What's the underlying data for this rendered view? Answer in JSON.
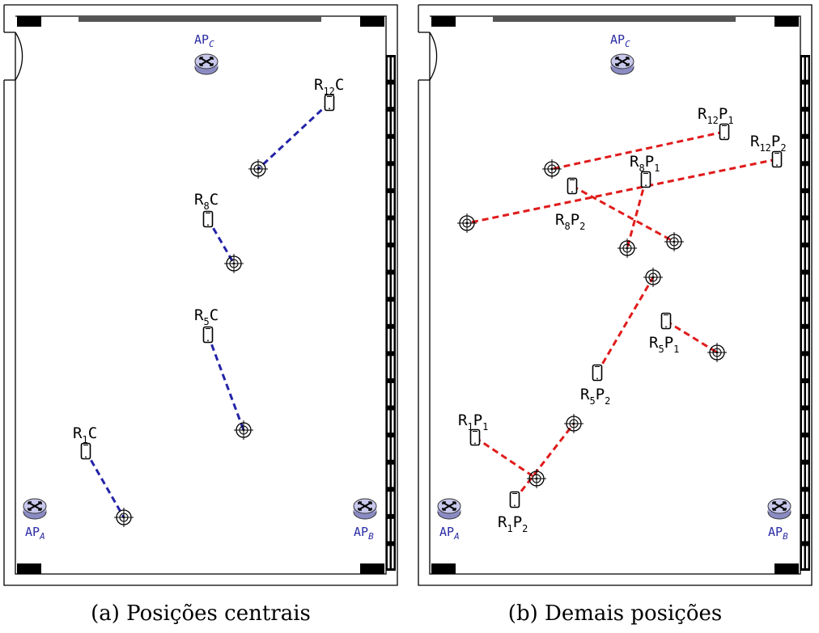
{
  "panels": [
    {
      "caption": "(a) Posições centrais",
      "line_color": "#2323a8",
      "access_points": [
        {
          "name": "AP",
          "sub": "C"
        },
        {
          "name": "AP",
          "sub": "A"
        },
        {
          "name": "AP",
          "sub": "B"
        }
      ],
      "readings": [
        {
          "label": "R",
          "sub": "12",
          "suffix": "C"
        },
        {
          "label": "R",
          "sub": "8",
          "suffix": "C"
        },
        {
          "label": "R",
          "sub": "5",
          "suffix": "C"
        },
        {
          "label": "R",
          "sub": "1",
          "suffix": "C"
        }
      ]
    },
    {
      "caption": "(b) Demais posições",
      "line_color": "#e01b1b",
      "access_points": [
        {
          "name": "AP",
          "sub": "C"
        },
        {
          "name": "AP",
          "sub": "A"
        },
        {
          "name": "AP",
          "sub": "B"
        }
      ],
      "readings": [
        {
          "label": "R",
          "sub": "12",
          "suffix": "P",
          "idx": "1"
        },
        {
          "label": "R",
          "sub": "12",
          "suffix": "P",
          "idx": "2"
        },
        {
          "label": "R",
          "sub": "8",
          "suffix": "P",
          "idx": "1"
        },
        {
          "label": "R",
          "sub": "8",
          "suffix": "P",
          "idx": "2"
        },
        {
          "label": "R",
          "sub": "5",
          "suffix": "P",
          "idx": "1"
        },
        {
          "label": "R",
          "sub": "5",
          "suffix": "P",
          "idx": "2"
        },
        {
          "label": "R",
          "sub": "1",
          "suffix": "P",
          "idx": "1"
        },
        {
          "label": "R",
          "sub": "1",
          "suffix": "P",
          "idx": "2"
        }
      ]
    }
  ],
  "icons": {
    "access_point": "router-icon",
    "reading_device": "smartphone-icon",
    "target": "crosshair-target-icon"
  }
}
